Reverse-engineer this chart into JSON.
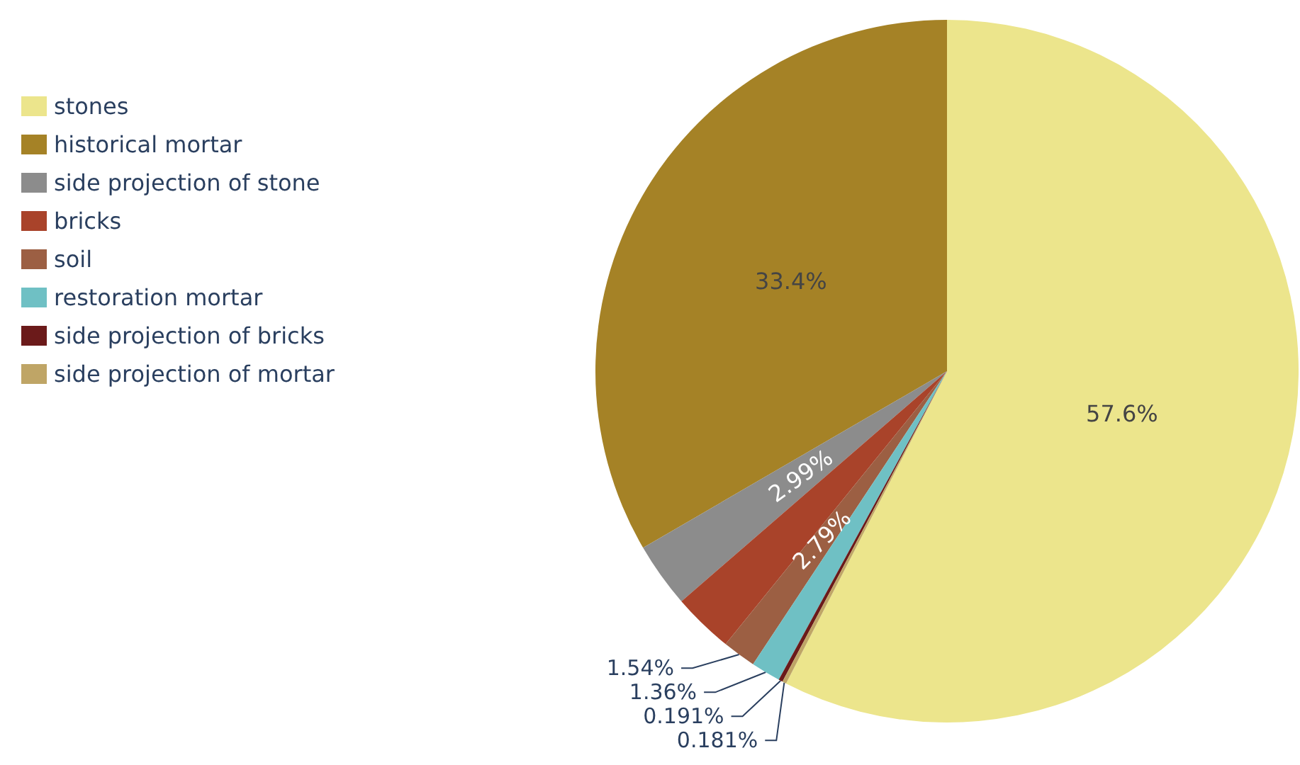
{
  "chart_data": {
    "type": "pie",
    "categories": [
      "stones",
      "historical mortar",
      "side projection of stone",
      "bricks",
      "soil",
      "restoration mortar",
      "side projection of bricks",
      "side projection of mortar"
    ],
    "values": [
      57.6,
      33.4,
      2.99,
      2.79,
      1.54,
      1.36,
      0.191,
      0.181
    ],
    "colors": [
      "#ece58c",
      "#a58226",
      "#8c8c8c",
      "#a9432a",
      "#9c5f43",
      "#6fc0c4",
      "#6b1a1a",
      "#bfa566"
    ],
    "value_labels": [
      "57.6%",
      "33.4%",
      "2.99%",
      "2.79%",
      "1.54%",
      "1.36%",
      "0.191%",
      "0.181%"
    ],
    "legend": "top left"
  }
}
